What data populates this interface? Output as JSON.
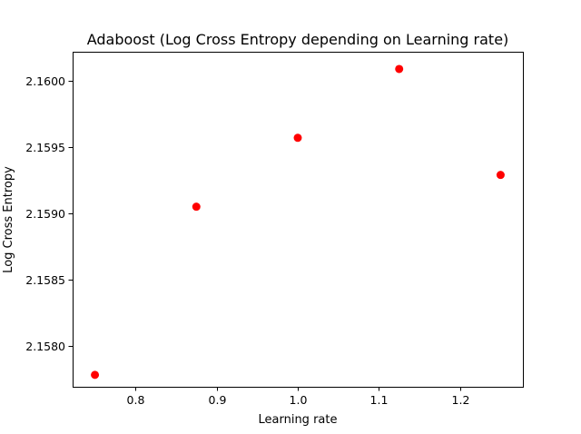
{
  "chart_data": {
    "type": "scatter",
    "title": "Adaboost (Log Cross Entropy depending on Learning rate)",
    "xlabel": "Learning rate",
    "ylabel": "Log Cross Entropy",
    "xlim": [
      0.7225,
      1.2775
    ],
    "ylim": [
      2.15769,
      2.16022
    ],
    "xticks": [
      0.8,
      0.9,
      1.0,
      1.1,
      1.2
    ],
    "xtick_labels": [
      "0.8",
      "0.9",
      "1.0",
      "1.1",
      "1.2"
    ],
    "yticks": [
      2.158,
      2.1585,
      2.159,
      2.1595,
      2.16
    ],
    "ytick_labels": [
      "2.1580",
      "2.1585",
      "2.1590",
      "2.1595",
      "2.1600"
    ],
    "grid": false,
    "point_color": "#ff0000",
    "points": [
      {
        "x": 0.75,
        "y": 2.15778
      },
      {
        "x": 0.875,
        "y": 2.15905
      },
      {
        "x": 1.0,
        "y": 2.15957
      },
      {
        "x": 1.125,
        "y": 2.16009
      },
      {
        "x": 1.25,
        "y": 2.15929
      }
    ]
  }
}
